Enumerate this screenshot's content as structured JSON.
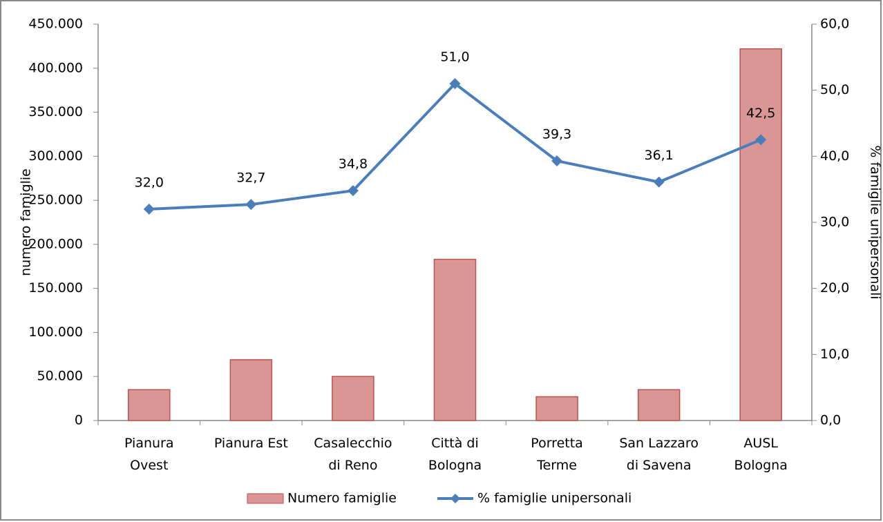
{
  "chart_data": {
    "type": "bar-line",
    "categories": [
      "Pianura\nOvest",
      "Pianura Est",
      "Casalecchio\ndi Reno",
      "Città di\nBologna",
      "Porretta\nTerme",
      "San Lazzaro\ndi Savena",
      "AUSL\nBologna"
    ],
    "ylabel": "numero famiglie",
    "y2label": "% famiglie unipersonali",
    "ylim": [
      0,
      450000
    ],
    "yticks": [
      0,
      {
        "value": 50000,
        "label": "50.000"
      },
      {
        "value": 100000,
        "label": "100.000"
      },
      {
        "value": 150000,
        "label": "150.000"
      },
      {
        "value": 200000,
        "label": "200.000"
      },
      {
        "value": 250000,
        "label": "250.000"
      },
      {
        "value": 300000,
        "label": "300.000"
      },
      {
        "value": 350000,
        "label": "350.000"
      },
      {
        "value": 400000,
        "label": "400.000"
      },
      {
        "value": 450000,
        "label": "450.000"
      }
    ],
    "y2lim": [
      0,
      60
    ],
    "y2ticks": [
      {
        "value": 0,
        "label": "0,0"
      },
      {
        "value": 10,
        "label": "10,0"
      },
      {
        "value": 20,
        "label": "20,0"
      },
      {
        "value": 30,
        "label": "30,0"
      },
      {
        "value": 40,
        "label": "40,0"
      },
      {
        "value": 50,
        "label": "50,0"
      },
      {
        "value": 60,
        "label": "60,0"
      }
    ],
    "legend": "bottom",
    "series": [
      {
        "name": "Numero famiglie",
        "type": "bar",
        "color": "#d99694",
        "values": [
          35000,
          69000,
          50000,
          183000,
          27000,
          35000,
          422000
        ]
      },
      {
        "name": "% famiglie unipersonali",
        "type": "line",
        "axis": "y2",
        "color": "#4a7ebb",
        "values": [
          32.0,
          32.7,
          34.8,
          51.0,
          39.3,
          36.1,
          42.5
        ],
        "value_labels": [
          "32,0",
          "32,7",
          "34,8",
          "51,0",
          "39,3",
          "36,1",
          "42,5"
        ]
      }
    ]
  }
}
